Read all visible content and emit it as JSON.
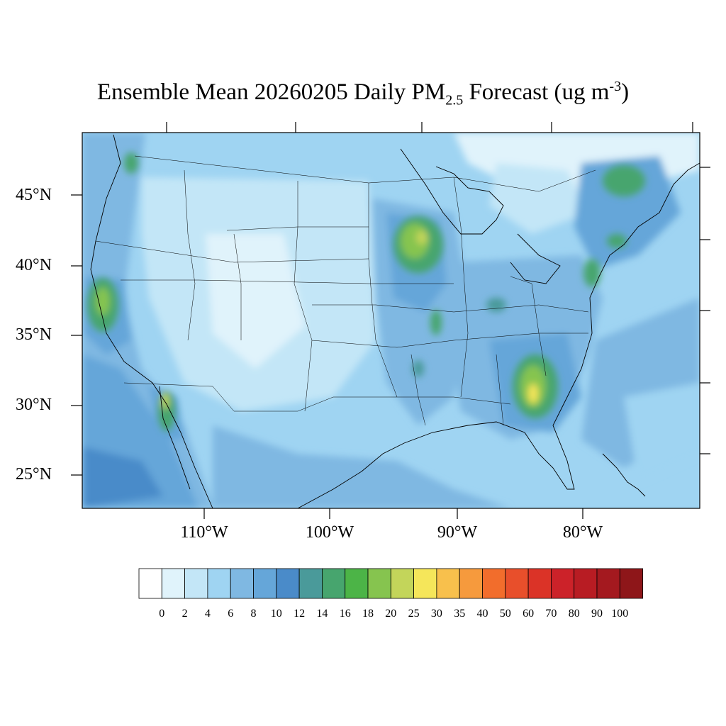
{
  "title": {
    "prefix": "Ensemble Mean 20260205 Daily PM",
    "subscript": "2.5",
    "middle": " Forecast (ug m",
    "superscript": "-3",
    "suffix": ")"
  },
  "map": {
    "projection": "lambert-conformal",
    "region": "Contiguous United States",
    "lat_labels": [
      "45°N",
      "40°N",
      "35°N",
      "30°N",
      "25°N"
    ],
    "lon_labels": [
      "110°W",
      "100°W",
      "90°W",
      "80°W"
    ]
  },
  "colorbar": {
    "labels": [
      "0",
      "2",
      "4",
      "6",
      "8",
      "10",
      "12",
      "14",
      "16",
      "18",
      "20",
      "25",
      "30",
      "35",
      "40",
      "50",
      "60",
      "70",
      "80",
      "90",
      "100"
    ],
    "colors": [
      "#ffffff",
      "#e0f3fb",
      "#c3e6f7",
      "#9fd4f2",
      "#7fb8e2",
      "#65a6d9",
      "#4a8bc9",
      "#4a9a9a",
      "#47a56e",
      "#4cb447",
      "#86c44f",
      "#c3d55a",
      "#f5e65a",
      "#f8c04c",
      "#f69a3d",
      "#f26d2c",
      "#e84f2b",
      "#db3327",
      "#cc2229",
      "#b81c23",
      "#a4191f",
      "#8e1619"
    ]
  }
}
